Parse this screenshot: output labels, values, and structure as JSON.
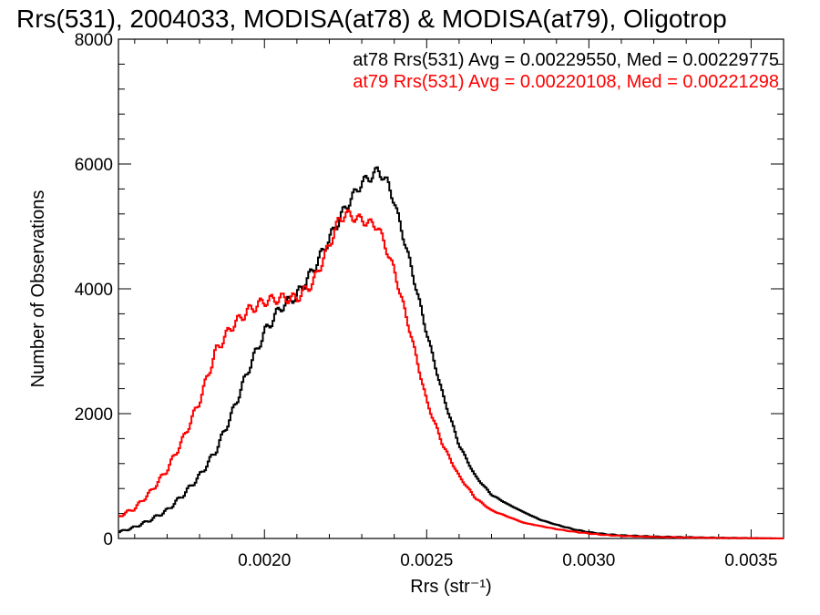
{
  "chart_data": {
    "type": "line",
    "title": "Rrs(531), 2004033, MODISA(at78) & MODISA(at79), Oligotrop",
    "xlabel": "Rrs (str⁻¹)",
    "ylabel": "Number of Observations",
    "xlim": [
      0.00155,
      0.0036
    ],
    "ylim": [
      0,
      8000
    ],
    "x_ticks": [
      {
        "value": 0.002,
        "label": "0.0020"
      },
      {
        "value": 0.0025,
        "label": "0.0025"
      },
      {
        "value": 0.003,
        "label": "0.0030"
      },
      {
        "value": 0.0035,
        "label": "0.0035"
      }
    ],
    "y_ticks": [
      {
        "value": 0,
        "label": "0"
      },
      {
        "value": 2000,
        "label": "2000"
      },
      {
        "value": 4000,
        "label": "4000"
      },
      {
        "value": 6000,
        "label": "6000"
      },
      {
        "value": 8000,
        "label": "8000"
      }
    ],
    "grid": false,
    "legend_position": "top-right",
    "annotations": [
      {
        "text": "at78 Rrs(531) Avg = 0.00229550, Med = 0.00229775",
        "color": "#000000"
      },
      {
        "text": "at79 Rrs(531) Avg = 0.00220108, Med = 0.00221298",
        "color": "#ff0000"
      }
    ],
    "series": [
      {
        "color": "#000000",
        "x": [
          0.00155,
          0.0016,
          0.00165,
          0.0017,
          0.00175,
          0.0018,
          0.00185,
          0.0019,
          0.00195,
          0.002,
          0.00205,
          0.0021,
          0.00215,
          0.0022,
          0.00225,
          0.0023,
          0.00233,
          0.00235,
          0.00238,
          0.0024,
          0.00245,
          0.0025,
          0.00255,
          0.0026,
          0.00265,
          0.0027,
          0.00275,
          0.0028,
          0.00285,
          0.0029,
          0.00295,
          0.003,
          0.00305,
          0.0031,
          0.0032,
          0.0033,
          0.0034,
          0.0035,
          0.0036
        ],
        "y": [
          100,
          180,
          300,
          450,
          700,
          1000,
          1400,
          2000,
          2700,
          3300,
          3700,
          3900,
          4300,
          4800,
          5300,
          5700,
          5800,
          5900,
          5700,
          5400,
          4400,
          3300,
          2300,
          1500,
          1000,
          700,
          550,
          420,
          300,
          220,
          150,
          100,
          70,
          50,
          30,
          20,
          10,
          5,
          0
        ]
      },
      {
        "color": "#ff0000",
        "x": [
          0.00155,
          0.0016,
          0.00165,
          0.0017,
          0.00175,
          0.0018,
          0.00185,
          0.0019,
          0.00195,
          0.002,
          0.00205,
          0.0021,
          0.00215,
          0.0022,
          0.00223,
          0.00225,
          0.0023,
          0.00235,
          0.0024,
          0.00245,
          0.0025,
          0.00255,
          0.0026,
          0.00265,
          0.0027,
          0.00275,
          0.0028,
          0.00285,
          0.0029,
          0.00295,
          0.003,
          0.00305,
          0.0031,
          0.0032,
          0.0033,
          0.0034,
          0.0035,
          0.0036
        ],
        "y": [
          350,
          480,
          750,
          1100,
          1600,
          2200,
          3000,
          3400,
          3650,
          3800,
          3850,
          3850,
          4100,
          4700,
          5100,
          5200,
          5100,
          5000,
          4300,
          3300,
          2200,
          1500,
          1000,
          650,
          450,
          350,
          250,
          200,
          150,
          110,
          80,
          55,
          40,
          25,
          15,
          8,
          5,
          0
        ]
      }
    ]
  }
}
